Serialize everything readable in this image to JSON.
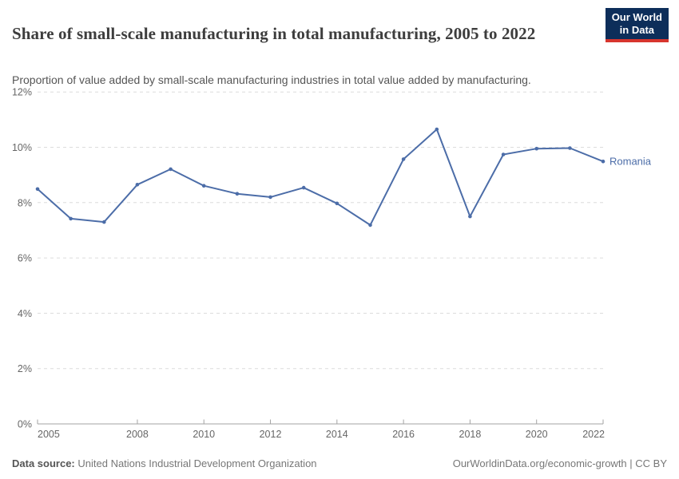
{
  "header": {
    "title": "Share of small-scale manufacturing in total manufacturing, 2005 to 2022",
    "subtitle": "Proportion of value added by small-scale manufacturing industries in total value added by manufacturing.",
    "logo": {
      "line1": "Our World",
      "line2": "in Data"
    }
  },
  "chart_data": {
    "type": "line",
    "title": "Share of small-scale manufacturing in total manufacturing, 2005 to 2022",
    "x": [
      2005,
      2006,
      2007,
      2008,
      2009,
      2010,
      2011,
      2012,
      2013,
      2014,
      2015,
      2016,
      2017,
      2018,
      2019,
      2020,
      2021,
      2022
    ],
    "series": [
      {
        "name": "Romania",
        "color": "#4c6da8",
        "values": [
          8.49,
          7.42,
          7.3,
          8.65,
          9.21,
          8.61,
          8.32,
          8.2,
          8.54,
          7.97,
          7.19,
          9.57,
          10.65,
          7.5,
          9.74,
          9.95,
          9.97,
          9.49
        ]
      }
    ],
    "xlabel": "",
    "ylabel": "",
    "xlim": [
      2005,
      2022
    ],
    "ylim": [
      0,
      12
    ],
    "x_ticks": [
      2005,
      2008,
      2010,
      2012,
      2014,
      2016,
      2018,
      2020,
      2022
    ],
    "y_ticks": [
      0,
      2,
      4,
      6,
      8,
      10,
      12
    ],
    "y_tick_suffix": "%",
    "grid": "horizontal-dashed",
    "legend": "end-of-line-label"
  },
  "footer": {
    "datasource_label": "Data source:",
    "datasource": "United Nations Industrial Development Organization",
    "credit": "OurWorldinData.org/economic-growth | CC BY"
  },
  "colors": {
    "line": "#4c6da8",
    "grid": "#dcdcdc",
    "axis": "#a3a3a3",
    "tick_text": "#666666",
    "title_text": "#3d3d3d",
    "subtitle_text": "#555555",
    "footer_text": "#777777",
    "logo_bg": "#0d2e5a",
    "logo_bar": "#d7352e"
  }
}
